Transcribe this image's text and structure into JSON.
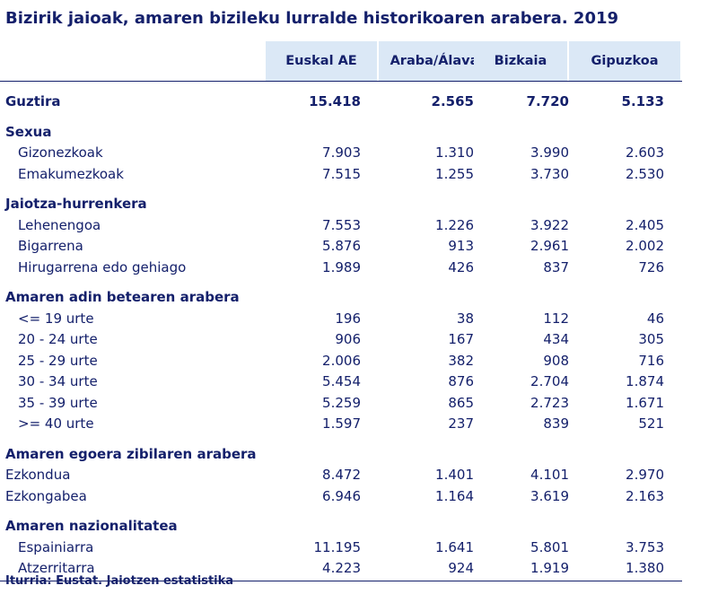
{
  "title": "Bizirik jaioak, amaren bizileku lurralde historikoaren arabera. 2019",
  "columns": [
    "Euskal AE",
    "Araba/Álava",
    "Bizkaia",
    "Gipuzkoa"
  ],
  "total": {
    "label": "Guztira",
    "values": [
      "15.418",
      "2.565",
      "7.720",
      "5.133"
    ]
  },
  "sections": [
    {
      "heading": "Sexua",
      "rows": [
        {
          "label": "Gizonezkoak",
          "values": [
            "7.903",
            "1.310",
            "3.990",
            "2.603"
          ]
        },
        {
          "label": "Emakumezkoak",
          "values": [
            "7.515",
            "1.255",
            "3.730",
            "2.530"
          ]
        }
      ]
    },
    {
      "heading": "Jaiotza-hurrenkera",
      "rows": [
        {
          "label": "Lehenengoa",
          "values": [
            "7.553",
            "1.226",
            "3.922",
            "2.405"
          ]
        },
        {
          "label": "Bigarrena",
          "values": [
            "5.876",
            "913",
            "2.961",
            "2.002"
          ]
        },
        {
          "label": "Hirugarrena edo gehiago",
          "values": [
            "1.989",
            "426",
            "837",
            "726"
          ]
        }
      ]
    },
    {
      "heading": "Amaren adin betearen arabera",
      "rows": [
        {
          "label": "<= 19 urte",
          "values": [
            "196",
            "38",
            "112",
            "46"
          ]
        },
        {
          "label": "20 - 24 urte",
          "values": [
            "906",
            "167",
            "434",
            "305"
          ]
        },
        {
          "label": "25 - 29 urte",
          "values": [
            "2.006",
            "382",
            "908",
            "716"
          ]
        },
        {
          "label": "30 - 34 urte",
          "values": [
            "5.454",
            "876",
            "2.704",
            "1.874"
          ]
        },
        {
          "label": "35 - 39 urte",
          "values": [
            "5.259",
            "865",
            "2.723",
            "1.671"
          ]
        },
        {
          "label": ">= 40 urte",
          "values": [
            "1.597",
            "237",
            "839",
            "521"
          ]
        }
      ]
    },
    {
      "heading": "Amaren egoera zibilaren arabera",
      "rows": [
        {
          "label": "Ezkondua",
          "values": [
            "8.472",
            "1.401",
            "4.101",
            "2.970"
          ]
        },
        {
          "label": "Ezkongabea",
          "values": [
            "6.946",
            "1.164",
            "3.619",
            "2.163"
          ]
        }
      ]
    },
    {
      "heading": "Amaren nazionalitatea",
      "rows": [
        {
          "label": "Espainiarra",
          "values": [
            "11.195",
            "1.641",
            "5.801",
            "3.753"
          ]
        },
        {
          "label": "Atzerritarra",
          "values": [
            "4.223",
            "924",
            "1.919",
            "1.380"
          ]
        }
      ]
    }
  ],
  "source": "Iturria: Eustat. Jaiotzen estatistika"
}
